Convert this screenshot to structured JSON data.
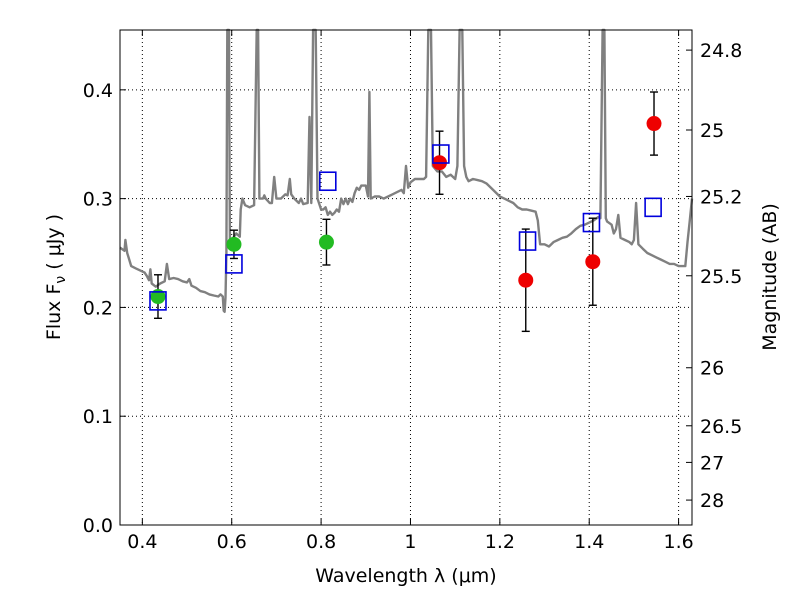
{
  "chart_data": {
    "type": "scatter",
    "xlabel": "Wavelength  λ (μm)",
    "ylabel": "Flux  F",
    "ylabel_sub": "ν",
    "ylabel_unit": " ( μJy )",
    "y2label": "Magnitude (AB)",
    "xlim": [
      0.35,
      1.63
    ],
    "ylim": [
      0.0,
      0.455
    ],
    "grid": true,
    "x_ticks": [
      0.4,
      0.6,
      0.8,
      1.0,
      1.2,
      1.4,
      1.6
    ],
    "x_tick_labels": [
      "0.4",
      "0.6",
      "0.8",
      "1",
      "1.2",
      "1.4",
      "1.6"
    ],
    "y_ticks": [
      0.0,
      0.1,
      0.2,
      0.3,
      0.4
    ],
    "y_tick_labels": [
      "0.0",
      "0.1",
      "0.2",
      "0.3",
      "0.4"
    ],
    "mag_ticks": [
      {
        "mag": 24.8,
        "label": "24.8"
      },
      {
        "mag": 25.0,
        "label": "25"
      },
      {
        "mag": 25.2,
        "label": "25.2"
      },
      {
        "mag": 25.5,
        "label": "25.5"
      },
      {
        "mag": 26.0,
        "label": "26"
      },
      {
        "mag": 26.5,
        "label": "26.5"
      },
      {
        "mag": 27.0,
        "label": "27"
      },
      {
        "mag": 28.0,
        "label": "28"
      }
    ],
    "series": [
      {
        "name": "ground-based photometry (green)",
        "marker": "circle",
        "color": "#22bb22",
        "points": [
          {
            "x": 0.435,
            "y": 0.21,
            "err": 0.02
          },
          {
            "x": 0.605,
            "y": 0.258,
            "err": 0.013
          },
          {
            "x": 0.812,
            "y": 0.26,
            "err": 0.021
          }
        ]
      },
      {
        "name": "HST photometry (red)",
        "marker": "circle",
        "color": "#ee0000",
        "points": [
          {
            "x": 1.065,
            "y": 0.333,
            "err": 0.029
          },
          {
            "x": 1.258,
            "y": 0.225,
            "err": 0.047
          },
          {
            "x": 1.408,
            "y": 0.242,
            "err": 0.04
          },
          {
            "x": 1.545,
            "y": 0.369,
            "err": 0.029
          }
        ]
      },
      {
        "name": "model photometry",
        "marker": "square-open",
        "color": "#0000dd",
        "points": [
          {
            "x": 0.435,
            "y": 0.206
          },
          {
            "x": 0.605,
            "y": 0.24
          },
          {
            "x": 0.815,
            "y": 0.316
          },
          {
            "x": 1.068,
            "y": 0.341
          },
          {
            "x": 1.262,
            "y": 0.261
          },
          {
            "x": 1.405,
            "y": 0.278
          },
          {
            "x": 1.543,
            "y": 0.292
          }
        ]
      },
      {
        "name": "model spectrum",
        "marker": "line",
        "color": "#808080",
        "points": [
          [
            0.35,
            0.255
          ],
          [
            0.36,
            0.252
          ],
          [
            0.362,
            0.262
          ],
          [
            0.366,
            0.25
          ],
          [
            0.37,
            0.245
          ],
          [
            0.375,
            0.238
          ],
          [
            0.385,
            0.236
          ],
          [
            0.395,
            0.234
          ],
          [
            0.405,
            0.232
          ],
          [
            0.41,
            0.229
          ],
          [
            0.415,
            0.225
          ],
          [
            0.418,
            0.235
          ],
          [
            0.421,
            0.222
          ],
          [
            0.43,
            0.219
          ],
          [
            0.44,
            0.222
          ],
          [
            0.45,
            0.224
          ],
          [
            0.455,
            0.24
          ],
          [
            0.46,
            0.226
          ],
          [
            0.47,
            0.227
          ],
          [
            0.48,
            0.226
          ],
          [
            0.49,
            0.224
          ],
          [
            0.5,
            0.223
          ],
          [
            0.505,
            0.226
          ],
          [
            0.51,
            0.22
          ],
          [
            0.52,
            0.218
          ],
          [
            0.53,
            0.215
          ],
          [
            0.54,
            0.214
          ],
          [
            0.55,
            0.212
          ],
          [
            0.56,
            0.211
          ],
          [
            0.57,
            0.21
          ],
          [
            0.575,
            0.212
          ],
          [
            0.58,
            0.21
          ],
          [
            0.582,
            0.197
          ],
          [
            0.584,
            0.196
          ],
          [
            0.586,
            0.209
          ],
          [
            0.588,
            0.25
          ],
          [
            0.59,
            0.455
          ],
          [
            0.594,
            0.455
          ],
          [
            0.596,
            0.26
          ],
          [
            0.6,
            0.262
          ],
          [
            0.61,
            0.268
          ],
          [
            0.618,
            0.265
          ],
          [
            0.62,
            0.29
          ],
          [
            0.624,
            0.3
          ],
          [
            0.63,
            0.294
          ],
          [
            0.64,
            0.292
          ],
          [
            0.65,
            0.294
          ],
          [
            0.656,
            0.455
          ],
          [
            0.659,
            0.455
          ],
          [
            0.662,
            0.3
          ],
          [
            0.67,
            0.3
          ],
          [
            0.673,
            0.303
          ],
          [
            0.676,
            0.3
          ],
          [
            0.685,
            0.296
          ],
          [
            0.69,
            0.296
          ],
          [
            0.695,
            0.32
          ],
          [
            0.7,
            0.3
          ],
          [
            0.71,
            0.3
          ],
          [
            0.72,
            0.304
          ],
          [
            0.725,
            0.303
          ],
          [
            0.73,
            0.318
          ],
          [
            0.733,
            0.304
          ],
          [
            0.74,
            0.3
          ],
          [
            0.75,
            0.296
          ],
          [
            0.755,
            0.3
          ],
          [
            0.76,
            0.295
          ],
          [
            0.77,
            0.296
          ],
          [
            0.774,
            0.375
          ],
          [
            0.778,
            0.296
          ],
          [
            0.782,
            0.455
          ],
          [
            0.788,
            0.455
          ],
          [
            0.792,
            0.3
          ],
          [
            0.8,
            0.29
          ],
          [
            0.805,
            0.29
          ],
          [
            0.81,
            0.292
          ],
          [
            0.815,
            0.285
          ],
          [
            0.82,
            0.288
          ],
          [
            0.825,
            0.285
          ],
          [
            0.83,
            0.287
          ],
          [
            0.835,
            0.29
          ],
          [
            0.84,
            0.288
          ],
          [
            0.845,
            0.3
          ],
          [
            0.85,
            0.295
          ],
          [
            0.855,
            0.3
          ],
          [
            0.86,
            0.295
          ],
          [
            0.865,
            0.3
          ],
          [
            0.87,
            0.297
          ],
          [
            0.875,
            0.305
          ],
          [
            0.88,
            0.31
          ],
          [
            0.885,
            0.308
          ],
          [
            0.89,
            0.312
          ],
          [
            0.9,
            0.312
          ],
          [
            0.905,
            0.302
          ],
          [
            0.908,
            0.398
          ],
          [
            0.911,
            0.3
          ],
          [
            0.92,
            0.302
          ],
          [
            0.93,
            0.302
          ],
          [
            0.94,
            0.3
          ],
          [
            0.95,
            0.302
          ],
          [
            0.96,
            0.304
          ],
          [
            0.97,
            0.306
          ],
          [
            0.98,
            0.308
          ],
          [
            0.985,
            0.305
          ],
          [
            0.99,
            0.33
          ],
          [
            0.995,
            0.31
          ],
          [
            1.0,
            0.315
          ],
          [
            1.01,
            0.318
          ],
          [
            1.02,
            0.318
          ],
          [
            1.03,
            0.318
          ],
          [
            1.035,
            0.32
          ],
          [
            1.04,
            0.455
          ],
          [
            1.046,
            0.455
          ],
          [
            1.05,
            0.33
          ],
          [
            1.06,
            0.325
          ],
          [
            1.07,
            0.325
          ],
          [
            1.08,
            0.32
          ],
          [
            1.09,
            0.322
          ],
          [
            1.1,
            0.318
          ],
          [
            1.105,
            0.33
          ],
          [
            1.11,
            0.455
          ],
          [
            1.116,
            0.455
          ],
          [
            1.12,
            0.33
          ],
          [
            1.125,
            0.32
          ],
          [
            1.13,
            0.316
          ],
          [
            1.14,
            0.318
          ],
          [
            1.15,
            0.317
          ],
          [
            1.16,
            0.316
          ],
          [
            1.17,
            0.314
          ],
          [
            1.18,
            0.31
          ],
          [
            1.19,
            0.306
          ],
          [
            1.2,
            0.302
          ],
          [
            1.21,
            0.3
          ],
          [
            1.22,
            0.298
          ],
          [
            1.23,
            0.296
          ],
          [
            1.24,
            0.292
          ],
          [
            1.25,
            0.29
          ],
          [
            1.26,
            0.29
          ],
          [
            1.27,
            0.289
          ],
          [
            1.28,
            0.288
          ],
          [
            1.285,
            0.28
          ],
          [
            1.29,
            0.258
          ],
          [
            1.3,
            0.258
          ],
          [
            1.31,
            0.256
          ],
          [
            1.32,
            0.26
          ],
          [
            1.33,
            0.262
          ],
          [
            1.34,
            0.264
          ],
          [
            1.35,
            0.265
          ],
          [
            1.36,
            0.268
          ],
          [
            1.37,
            0.272
          ],
          [
            1.38,
            0.275
          ],
          [
            1.39,
            0.276
          ],
          [
            1.4,
            0.278
          ],
          [
            1.41,
            0.28
          ],
          [
            1.42,
            0.283
          ],
          [
            1.425,
            0.282
          ],
          [
            1.43,
            0.455
          ],
          [
            1.434,
            0.455
          ],
          [
            1.437,
            0.282
          ],
          [
            1.44,
            0.279
          ],
          [
            1.45,
            0.276
          ],
          [
            1.455,
            0.268
          ],
          [
            1.46,
            0.272
          ],
          [
            1.465,
            0.285
          ],
          [
            1.47,
            0.264
          ],
          [
            1.48,
            0.262
          ],
          [
            1.49,
            0.26
          ],
          [
            1.495,
            0.258
          ],
          [
            1.5,
            0.262
          ],
          [
            1.505,
            0.296
          ],
          [
            1.51,
            0.258
          ],
          [
            1.52,
            0.254
          ],
          [
            1.53,
            0.25
          ],
          [
            1.54,
            0.248
          ],
          [
            1.55,
            0.246
          ],
          [
            1.56,
            0.244
          ],
          [
            1.57,
            0.242
          ],
          [
            1.58,
            0.24
          ],
          [
            1.59,
            0.24
          ],
          [
            1.6,
            0.238
          ],
          [
            1.61,
            0.238
          ],
          [
            1.615,
            0.238
          ],
          [
            1.62,
            0.26
          ],
          [
            1.625,
            0.28
          ],
          [
            1.63,
            0.3
          ]
        ]
      }
    ]
  }
}
